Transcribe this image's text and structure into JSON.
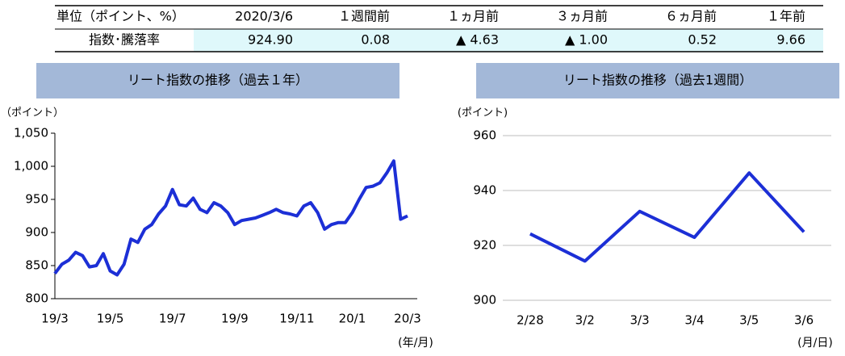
{
  "table": {
    "header": [
      "単位（ポイント、%）",
      "2020/3/6",
      "１週間前",
      "１ヵ月前",
      "３ヵ月前",
      "６ヵ月前",
      "１年前"
    ],
    "rows": [
      [
        "指数･騰落率",
        "924.90",
        "0.08",
        "▲ 4.63",
        "▲ 1.00",
        "0.52",
        "9.66"
      ]
    ]
  },
  "chart_data": [
    {
      "type": "line",
      "title": "リート指数の推移（過去１年）",
      "y_label": "（ポイント）",
      "x_label": "(年/月)",
      "categories": [
        "19/3",
        null,
        null,
        null,
        null,
        null,
        null,
        null,
        "19/5",
        null,
        null,
        null,
        null,
        null,
        null,
        null,
        null,
        "19/7",
        null,
        null,
        null,
        null,
        null,
        null,
        null,
        null,
        "19/9",
        null,
        null,
        null,
        null,
        null,
        null,
        null,
        null,
        "19/11",
        null,
        null,
        null,
        null,
        null,
        null,
        null,
        "20/1",
        null,
        null,
        null,
        null,
        null,
        null,
        null,
        "20/3"
      ],
      "series": [
        {
          "name": "リート指数",
          "color": "#1c2fd6",
          "values": [
            838,
            852,
            858,
            870,
            865,
            848,
            850,
            868,
            842,
            836,
            852,
            890,
            885,
            905,
            912,
            928,
            940,
            965,
            942,
            940,
            952,
            935,
            930,
            945,
            940,
            930,
            912,
            918,
            920,
            922,
            926,
            930,
            935,
            930,
            928,
            925,
            940,
            945,
            930,
            905,
            912,
            915,
            915,
            930,
            950,
            968,
            970,
            975,
            990,
            1008,
            920,
            925
          ]
        }
      ],
      "ylim": [
        800,
        1050
      ],
      "yticks": [
        800,
        850,
        900,
        950,
        {
          "value": 1000,
          "label": "1,000"
        },
        {
          "value": 1050,
          "label": "1,050"
        }
      ],
      "grid": false
    },
    {
      "type": "line",
      "title": "リート指数の推移（過去1週間）",
      "y_label": "(ポイント)",
      "x_label": "(月/日)",
      "categories": [
        "2/28",
        "3/2",
        "3/3",
        "3/4",
        "3/5",
        "3/6"
      ],
      "series": [
        {
          "name": "リート指数",
          "color": "#1c2fd6",
          "values": [
            924.2,
            914.3,
            932.4,
            922.9,
            946.4,
            924.9
          ]
        }
      ],
      "ylim": [
        900,
        960
      ],
      "yticks": [
        900,
        920,
        940,
        960
      ],
      "grid": true
    }
  ]
}
